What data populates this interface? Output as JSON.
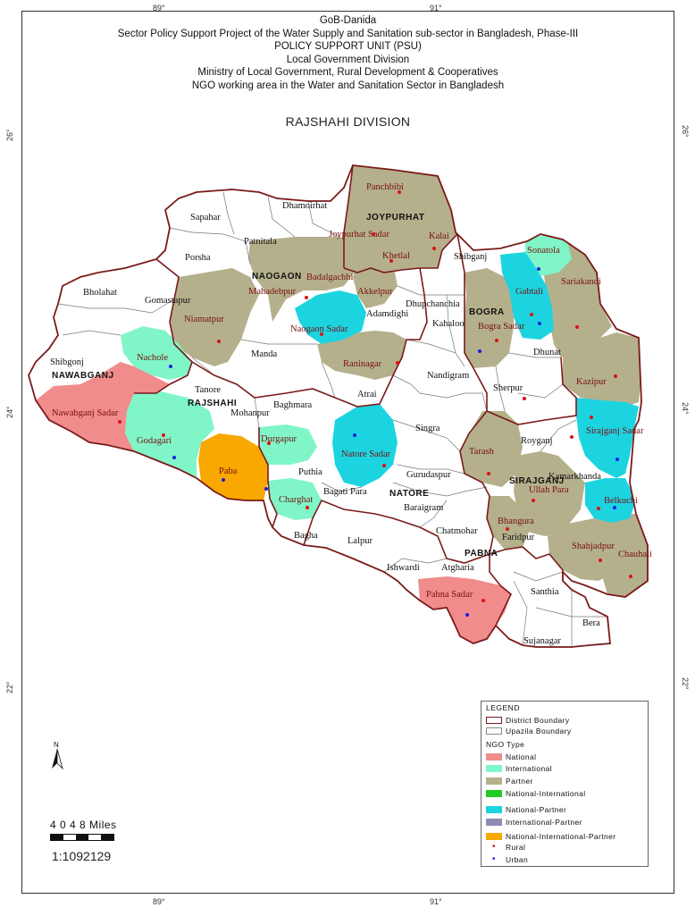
{
  "header": {
    "lines": [
      "GoB-Danida",
      "Sector Policy Support Project of the Water Supply and Sanitation sub-sector in Bangladesh, Phase-III",
      "POLICY SUPPORT UNIT (PSU)",
      "Local Government Division",
      "Ministry of Local Government, Rural Development & Cooperatives",
      "NGO working area in the Water and Sanitation Sector in Bangladesh"
    ]
  },
  "map_title": "RAJSHAHI DIVISION",
  "graticule": {
    "top": [
      "89°",
      "91°"
    ],
    "bottom": [
      "89°",
      "91°"
    ],
    "left": [
      "26°",
      "24°",
      "22°"
    ],
    "right": [
      "26°",
      "24°",
      "22°"
    ]
  },
  "colors": {
    "national": "#f08c8c",
    "international": "#80f5c8",
    "partner": "#b4b08c",
    "national_international": "#22cc22",
    "national_partner": "#1cd4e0",
    "international_partner": "#8c8cb4",
    "national_international_partner": "#f8a800",
    "district_boundary": "#7a1a1a",
    "upazila_boundary": "#888888",
    "rural_dot": "#dd1111",
    "urban_dot": "#1122dd"
  },
  "districts": [
    "JOYPURHAT",
    "NAOGAON",
    "BOGRA",
    "NAWABGANJ",
    "RAJSHAHI",
    "NATORE",
    "SIRAJGANJ",
    "PABNA"
  ],
  "upazilas": {
    "black": [
      "Sapahar",
      "Dhamoirhat",
      "Patnitala",
      "Porsha",
      "Bholahat",
      "Gomastapur",
      "Shibgonj",
      "Shibganj",
      "Manda",
      "Tanore",
      "Mohanpur",
      "Baghmara",
      "Atrai",
      "Nandigram",
      "Dhupchanchia",
      "Kahaloo",
      "Dhunat",
      "Sherpur",
      "Singra",
      "Royganj",
      "Gurudaspur",
      "Baraigram",
      "Bagati Para",
      "Puthia",
      "Bagha",
      "Lalpur",
      "Chatmohar",
      "Atgharia",
      "Ishwardi",
      "Santhia",
      "Bera",
      "Sujanagar",
      "Adamdighi",
      "Kamarkhanda",
      "Faridpur"
    ],
    "red": [
      "Panchbibi",
      "Joypurhat Sadar",
      "Kalai",
      "Khetlal",
      "Sonatola",
      "Badalgachhi",
      "Mahadebpur",
      "Akkelpur",
      "Gabtali",
      "Sariakandi",
      "Niamatpur",
      "Naogaon Sadar",
      "Bogra Sadar",
      "Nachole",
      "Raninagar",
      "Kazipur",
      "Nawabganj Sadar",
      "Godagari",
      "Paba",
      "Durgapur",
      "Natore Sadar",
      "Sirajganj Sadar",
      "Tarash",
      "Charghat",
      "Ullah Para",
      "Belkuchi",
      "Bhangura",
      "Shahjadpur",
      "Chauhali",
      "Pabna Sadar"
    ]
  },
  "legend": {
    "title": "LEGEND",
    "boundary_items": [
      "District Boundary",
      "Upazila Boundary"
    ],
    "ngo_type_title": "NGO Type",
    "ngo_items": [
      "National",
      "International",
      "Partner",
      "National-International",
      "National-Partner",
      "International-Partner",
      "National-International-Partner"
    ],
    "point_items": [
      "Rural",
      "Urban"
    ]
  },
  "scale": {
    "bar_numbers": "4   0   4   8   Miles",
    "ratio": "1:1092129"
  },
  "north_label": "N"
}
